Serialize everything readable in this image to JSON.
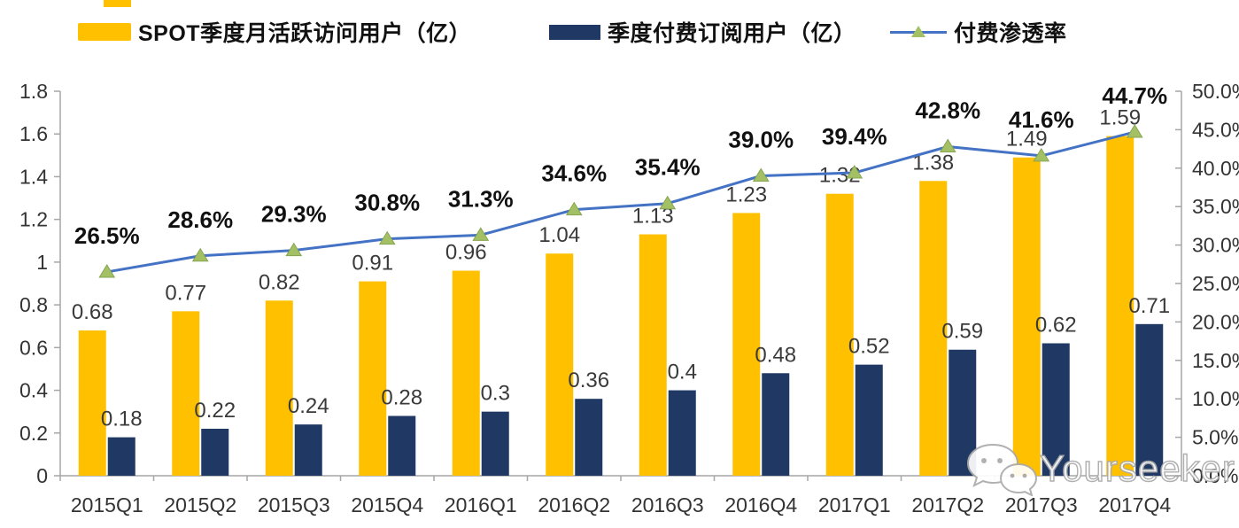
{
  "legend": {
    "mau": {
      "label": "SPOT季度月活跃访问用户（亿）",
      "color": "#FFC000"
    },
    "subs": {
      "label": "季度付费订阅用户（亿）",
      "color": "#1F3864"
    },
    "penetration": {
      "label": "付费渗透率",
      "line_color": "#4472C4",
      "marker_color": "#A3C164"
    }
  },
  "chart_data": {
    "type": "bar",
    "subtype": "grouped-bars-with-line-combo",
    "categories": [
      "2015Q1",
      "2015Q2",
      "2015Q3",
      "2015Q4",
      "2016Q1",
      "2016Q2",
      "2016Q3",
      "2016Q4",
      "2017Q1",
      "2017Q2",
      "2017Q3",
      "2017Q4"
    ],
    "series": [
      {
        "name": "SPOT季度月活跃访问用户（亿）",
        "type": "bar",
        "axis": "left",
        "color": "#FFC000",
        "values": [
          0.68,
          0.77,
          0.82,
          0.91,
          0.96,
          1.04,
          1.13,
          1.23,
          1.32,
          1.38,
          1.49,
          1.59
        ],
        "labels": [
          "0.68",
          "0.77",
          "0.82",
          "0.91",
          "0.96",
          "1.04",
          "1.13",
          "1.23",
          "1.32",
          "1.38",
          "1.49",
          "1.59"
        ]
      },
      {
        "name": "季度付费订阅用户（亿）",
        "type": "bar",
        "axis": "left",
        "color": "#1F3864",
        "values": [
          0.18,
          0.22,
          0.24,
          0.28,
          0.3,
          0.36,
          0.4,
          0.48,
          0.52,
          0.59,
          0.62,
          0.71
        ],
        "labels": [
          "0.18",
          "0.22",
          "0.24",
          "0.28",
          "0.3",
          "0.36",
          "0.4",
          "0.48",
          "0.52",
          "0.59",
          "0.62",
          "0.71"
        ]
      },
      {
        "name": "付费渗透率",
        "type": "line",
        "axis": "right",
        "color": "#4472C4",
        "marker": "triangle",
        "marker_color": "#A3C164",
        "values": [
          26.5,
          28.6,
          29.3,
          30.8,
          31.3,
          34.6,
          35.4,
          39.0,
          39.4,
          42.8,
          41.6,
          44.7
        ],
        "labels": [
          "26.5%",
          "28.6%",
          "29.3%",
          "30.8%",
          "31.3%",
          "34.6%",
          "35.4%",
          "39.0%",
          "39.4%",
          "42.8%",
          "41.6%",
          "44.7%"
        ]
      }
    ],
    "left_axis": {
      "min": 0,
      "max": 1.8,
      "step": 0.2,
      "ticks": [
        "1.8",
        "1.6",
        "1.4",
        "1.2",
        "1",
        "0.8",
        "0.6",
        "0.4",
        "0.2",
        "0"
      ]
    },
    "right_axis": {
      "min": 0,
      "max": 50,
      "step": 5,
      "ticks": [
        "50.0%",
        "45.0%",
        "40.0%",
        "35.0%",
        "30.0%",
        "25.0%",
        "20.0%",
        "15.0%",
        "10.0%",
        "5.0%",
        "0.0%"
      ]
    },
    "grid": false,
    "legend_position": "top",
    "axis_color": "#a6a6a6",
    "label_color": "#3a3a3a",
    "pct_label_color": "#111111"
  },
  "watermark": {
    "text": "Yourseeker",
    "icon": "wechat-icon"
  }
}
